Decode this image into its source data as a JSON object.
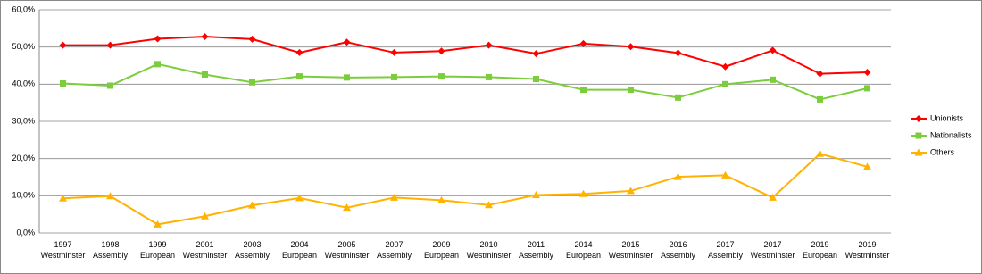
{
  "chart_data": {
    "type": "line",
    "categories": [
      "1997\nWestminster",
      "1998\nAssembly",
      "1999\nEuropean",
      "2001\nWestminster",
      "2003\nAssembly",
      "2004\nEuropean",
      "2005\nWestminster",
      "2007\nAssembly",
      "2009\nEuropean",
      "2010\nWestminster",
      "2011\nAssembly",
      "2014\nEuropean",
      "2015\nWestminster",
      "2016\nAssembly",
      "2017\nAssembly",
      "2017\nWestminster",
      "2019\nEuropean",
      "2019\nWestminster"
    ],
    "series": [
      {
        "name": "Unionists",
        "color": "#ff0000",
        "marker": "diamond",
        "values": [
          50.5,
          50.5,
          52.2,
          52.8,
          52.1,
          48.5,
          51.3,
          48.5,
          48.9,
          50.5,
          48.2,
          50.9,
          50.1,
          48.4,
          44.7,
          49.1,
          42.8,
          43.2
        ]
      },
      {
        "name": "Nationalists",
        "color": "#7ccd3c",
        "marker": "square",
        "values": [
          40.2,
          39.6,
          45.4,
          42.6,
          40.5,
          42.1,
          41.8,
          41.9,
          42.1,
          41.9,
          41.4,
          38.5,
          38.5,
          36.4,
          40.0,
          41.2,
          35.9,
          38.9
        ]
      },
      {
        "name": "Others",
        "color": "#ffb300",
        "marker": "triangle",
        "values": [
          9.3,
          9.9,
          2.3,
          4.5,
          7.4,
          9.4,
          6.8,
          9.5,
          8.8,
          7.5,
          10.2,
          10.5,
          11.3,
          15.1,
          15.5,
          9.5,
          21.3,
          17.8
        ]
      }
    ],
    "ylim": [
      0,
      60
    ],
    "yticks": [
      {
        "value": 0,
        "label": "0,0%"
      },
      {
        "value": 10,
        "label": "10,0%"
      },
      {
        "value": 20,
        "label": "20,0%"
      },
      {
        "value": 30,
        "label": "30,0%"
      },
      {
        "value": 40,
        "label": "40,0%"
      },
      {
        "value": 50,
        "label": "50,0%"
      },
      {
        "value": 60,
        "label": "60,0%"
      }
    ],
    "grid": true,
    "legend": "right"
  }
}
